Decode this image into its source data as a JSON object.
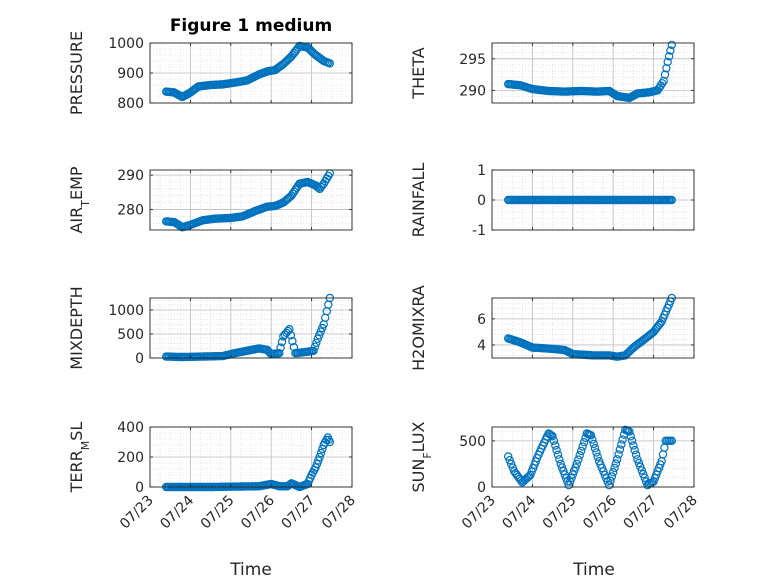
{
  "figure": {
    "title": "Figure 1 medium",
    "xlabel": "Time",
    "x_ticks": [
      "07/23",
      "07/24",
      "07/25",
      "07/26",
      "07/27",
      "07/28"
    ],
    "x_tick_values": [
      23,
      24,
      25,
      26,
      27,
      28
    ],
    "marker_color": "#0072BD"
  },
  "chart_data": [
    {
      "type": "scatter",
      "ylabel": "PRESSURE",
      "ylabel_sub": "",
      "ylabel_tail": "",
      "xlim": [
        23,
        28
      ],
      "ylim": [
        800,
        1000
      ],
      "yticks": [
        800,
        900,
        1000
      ],
      "grid": true,
      "trend": [
        [
          23.4,
          838
        ],
        [
          23.6,
          835
        ],
        [
          23.8,
          820
        ],
        [
          24.0,
          835
        ],
        [
          24.2,
          855
        ],
        [
          24.5,
          860
        ],
        [
          24.8,
          862
        ],
        [
          25.1,
          868
        ],
        [
          25.4,
          875
        ],
        [
          25.7,
          895
        ],
        [
          25.9,
          905
        ],
        [
          26.1,
          910
        ],
        [
          26.3,
          930
        ],
        [
          26.5,
          955
        ],
        [
          26.7,
          990
        ],
        [
          26.9,
          985
        ],
        [
          27.1,
          960
        ],
        [
          27.3,
          940
        ],
        [
          27.45,
          932
        ]
      ]
    },
    {
      "type": "scatter",
      "ylabel": "THETA",
      "ylabel_sub": "",
      "ylabel_tail": "",
      "xlim": [
        23,
        28
      ],
      "ylim": [
        288,
        297.5
      ],
      "yticks": [
        290,
        295
      ],
      "grid": true,
      "trend": [
        [
          23.4,
          291
        ],
        [
          23.7,
          290.8
        ],
        [
          24.0,
          290.2
        ],
        [
          24.4,
          289.9
        ],
        [
          24.8,
          289.8
        ],
        [
          25.2,
          289.9
        ],
        [
          25.6,
          289.8
        ],
        [
          25.9,
          289.9
        ],
        [
          26.1,
          289.1
        ],
        [
          26.4,
          288.8
        ],
        [
          26.6,
          289.5
        ],
        [
          26.9,
          289.7
        ],
        [
          27.1,
          290.0
        ],
        [
          27.25,
          291.5
        ],
        [
          27.35,
          294.5
        ],
        [
          27.45,
          297.2
        ]
      ]
    },
    {
      "type": "scatter",
      "ylabel": "AIR",
      "ylabel_sub": "T",
      "ylabel_tail": "EMP",
      "xlim": [
        23,
        28
      ],
      "ylim": [
        274,
        291.5
      ],
      "yticks": [
        280,
        290
      ],
      "grid": true,
      "trend": [
        [
          23.4,
          276.5
        ],
        [
          23.6,
          276.3
        ],
        [
          23.8,
          274.8
        ],
        [
          24.0,
          275.5
        ],
        [
          24.3,
          276.8
        ],
        [
          24.6,
          277.3
        ],
        [
          25.0,
          277.5
        ],
        [
          25.3,
          278.0
        ],
        [
          25.6,
          279.5
        ],
        [
          25.9,
          280.8
        ],
        [
          26.1,
          281.0
        ],
        [
          26.3,
          282.0
        ],
        [
          26.5,
          284.0
        ],
        [
          26.7,
          287.5
        ],
        [
          26.9,
          288.0
        ],
        [
          27.1,
          287.0
        ],
        [
          27.2,
          286.0
        ],
        [
          27.3,
          287.5
        ],
        [
          27.45,
          290.5
        ]
      ]
    },
    {
      "type": "scatter",
      "ylabel": "RAINFALL",
      "ylabel_sub": "",
      "ylabel_tail": "",
      "xlim": [
        23,
        28
      ],
      "ylim": [
        -1,
        1
      ],
      "yticks": [
        -1,
        0,
        1
      ],
      "grid": true,
      "trend": [
        [
          23.4,
          0
        ],
        [
          27.45,
          0
        ]
      ]
    },
    {
      "type": "scatter",
      "ylabel": "MIXDEPTH",
      "ylabel_sub": "",
      "ylabel_tail": "",
      "xlim": [
        23,
        28
      ],
      "ylim": [
        0,
        1250
      ],
      "yticks": [
        0,
        500,
        1000
      ],
      "grid": true,
      "trend": [
        [
          23.4,
          30
        ],
        [
          23.8,
          20
        ],
        [
          24.3,
          30
        ],
        [
          24.8,
          40
        ],
        [
          25.1,
          100
        ],
        [
          25.4,
          150
        ],
        [
          25.7,
          200
        ],
        [
          25.9,
          170
        ],
        [
          26.0,
          80
        ],
        [
          26.2,
          100
        ],
        [
          26.3,
          450
        ],
        [
          26.45,
          600
        ],
        [
          26.6,
          100
        ],
        [
          26.9,
          130
        ],
        [
          27.05,
          150
        ],
        [
          27.15,
          400
        ],
        [
          27.3,
          700
        ],
        [
          27.45,
          1250
        ]
      ]
    },
    {
      "type": "scatter",
      "ylabel": "H2OMIXRA",
      "ylabel_sub": "",
      "ylabel_tail": "",
      "xlim": [
        23,
        28
      ],
      "ylim": [
        3,
        7.6
      ],
      "yticks": [
        4,
        6
      ],
      "grid": true,
      "trend": [
        [
          23.4,
          4.5
        ],
        [
          23.7,
          4.2
        ],
        [
          24.0,
          3.8
        ],
        [
          24.5,
          3.7
        ],
        [
          24.8,
          3.6
        ],
        [
          25.0,
          3.3
        ],
        [
          25.5,
          3.2
        ],
        [
          25.9,
          3.2
        ],
        [
          26.1,
          3.1
        ],
        [
          26.3,
          3.2
        ],
        [
          26.5,
          3.8
        ],
        [
          26.8,
          4.5
        ],
        [
          27.0,
          5.0
        ],
        [
          27.2,
          5.8
        ],
        [
          27.45,
          7.6
        ]
      ]
    },
    {
      "type": "scatter",
      "ylabel": "TERR",
      "ylabel_sub": "M",
      "ylabel_tail": "SL",
      "xlim": [
        23,
        28
      ],
      "ylim": [
        0,
        400
      ],
      "yticks": [
        0,
        200,
        400
      ],
      "grid": true,
      "trend": [
        [
          23.4,
          0
        ],
        [
          24.5,
          0
        ],
        [
          25.7,
          5
        ],
        [
          26.0,
          20
        ],
        [
          26.2,
          5
        ],
        [
          26.4,
          5
        ],
        [
          26.5,
          25
        ],
        [
          26.7,
          0
        ],
        [
          26.9,
          20
        ],
        [
          27.0,
          80
        ],
        [
          27.1,
          130
        ],
        [
          27.2,
          200
        ],
        [
          27.3,
          280
        ],
        [
          27.4,
          330
        ],
        [
          27.45,
          300
        ]
      ]
    },
    {
      "type": "scatter",
      "ylabel": "SUN",
      "ylabel_sub": "F",
      "ylabel_tail": "LUX",
      "xlim": [
        23,
        28
      ],
      "ylim": [
        0,
        650
      ],
      "yticks": [
        0,
        500
      ],
      "grid": true,
      "trend": [
        [
          23.4,
          330
        ],
        [
          23.55,
          170
        ],
        [
          23.75,
          50
        ],
        [
          23.95,
          130
        ],
        [
          24.15,
          350
        ],
        [
          24.4,
          580
        ],
        [
          24.5,
          550
        ],
        [
          24.7,
          250
        ],
        [
          24.9,
          20
        ],
        [
          25.1,
          250
        ],
        [
          25.35,
          580
        ],
        [
          25.45,
          560
        ],
        [
          25.65,
          280
        ],
        [
          25.9,
          20
        ],
        [
          26.1,
          300
        ],
        [
          26.3,
          620
        ],
        [
          26.4,
          600
        ],
        [
          26.6,
          300
        ],
        [
          26.85,
          20
        ],
        [
          27.0,
          60
        ],
        [
          27.2,
          280
        ],
        [
          27.3,
          500
        ],
        [
          27.45,
          500
        ]
      ]
    }
  ]
}
